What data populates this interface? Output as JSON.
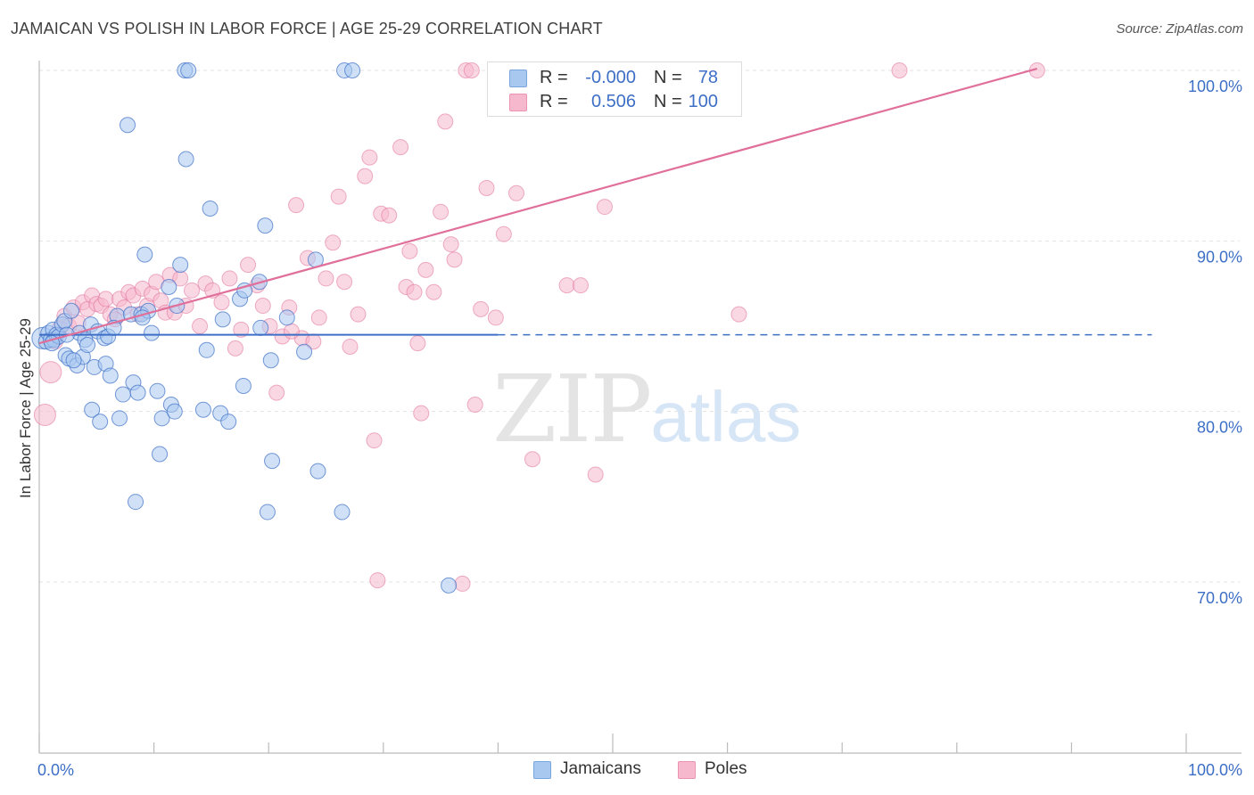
{
  "title": "JAMAICAN VS POLISH IN LABOR FORCE | AGE 25-29 CORRELATION CHART",
  "source": "Source: ZipAtlas.com",
  "watermark": {
    "zip": "ZIP",
    "atlas": "atlas"
  },
  "colors": {
    "jamaicans": "#3d6fc6",
    "poles": "#e0709a",
    "jamaicans_fill": "#a9c8f0",
    "poles_fill": "#f6b8cc",
    "accent_text": "#3d6fc6"
  },
  "legend": {
    "jamaicans": {
      "r_label": "R =",
      "r_value": "-0.000",
      "n_label": "N =",
      "n_value": "78"
    },
    "poles": {
      "r_label": "R =",
      "r_value": "0.506",
      "n_label": "N =",
      "n_value": "100"
    }
  },
  "bottom_legend": {
    "jamaicans": "Jamaicans",
    "poles": "Poles"
  },
  "chart_data": {
    "type": "scatter",
    "title": "JAMAICAN VS POLISH IN LABOR FORCE | AGE 25-29 CORRELATION CHART",
    "xlabel": "",
    "ylabel": "In Labor Force | Age 25-29",
    "xlim": [
      0,
      100
    ],
    "ylim": [
      60.5,
      101.5
    ],
    "x_tick_labels": [
      "0.0%",
      "100.0%"
    ],
    "y_ticks": [
      70,
      80,
      90,
      100
    ],
    "y_tick_labels": [
      "70.0%",
      "80.0%",
      "90.0%",
      "100.0%"
    ],
    "grid": true,
    "legend_position": "top-center",
    "series": [
      {
        "name": "Jamaicans",
        "trend": {
          "x": [
            0,
            40
          ],
          "y": [
            84.5,
            84.5
          ],
          "dashed_to_x": 97
        },
        "points": [
          [
            0.3,
            84.3
          ],
          [
            0.6,
            84.1
          ],
          [
            0.8,
            84.6
          ],
          [
            1.0,
            84.2
          ],
          [
            1.2,
            84.8
          ],
          [
            1.3,
            84.2
          ],
          [
            1.5,
            84.5
          ],
          [
            1.7,
            84.4
          ],
          [
            2.0,
            85.1
          ],
          [
            2.2,
            85.3
          ],
          [
            2.3,
            83.3
          ],
          [
            2.6,
            83.1
          ],
          [
            2.8,
            85.9
          ],
          [
            3.3,
            82.7
          ],
          [
            3.5,
            84.6
          ],
          [
            3.8,
            83.2
          ],
          [
            4.0,
            84.2
          ],
          [
            4.2,
            83.9
          ],
          [
            4.5,
            85.1
          ],
          [
            4.6,
            80.1
          ],
          [
            4.8,
            82.6
          ],
          [
            5.1,
            84.7
          ],
          [
            5.3,
            79.4
          ],
          [
            5.7,
            84.3
          ],
          [
            5.8,
            82.8
          ],
          [
            6.0,
            84.4
          ],
          [
            6.2,
            82.1
          ],
          [
            6.8,
            85.6
          ],
          [
            7.0,
            79.6
          ],
          [
            7.3,
            81.0
          ],
          [
            7.7,
            96.8
          ],
          [
            8.0,
            85.7
          ],
          [
            8.2,
            81.7
          ],
          [
            8.4,
            74.7
          ],
          [
            8.6,
            81.1
          ],
          [
            8.9,
            85.7
          ],
          [
            9.2,
            89.2
          ],
          [
            9.5,
            85.9
          ],
          [
            9.8,
            84.6
          ],
          [
            10.3,
            81.2
          ],
          [
            10.5,
            77.5
          ],
          [
            10.7,
            79.6
          ],
          [
            11.3,
            87.3
          ],
          [
            11.5,
            80.4
          ],
          [
            11.8,
            80.0
          ],
          [
            12.0,
            86.2
          ],
          [
            12.3,
            88.6
          ],
          [
            12.7,
            100.0
          ],
          [
            13.0,
            100.0
          ],
          [
            12.8,
            94.8
          ],
          [
            14.3,
            80.1
          ],
          [
            14.6,
            83.6
          ],
          [
            14.9,
            91.9
          ],
          [
            15.8,
            79.9
          ],
          [
            16.5,
            79.4
          ],
          [
            17.5,
            86.6
          ],
          [
            17.8,
            81.5
          ],
          [
            17.9,
            87.1
          ],
          [
            19.2,
            87.6
          ],
          [
            19.3,
            84.9
          ],
          [
            19.7,
            90.9
          ],
          [
            19.9,
            74.1
          ],
          [
            20.2,
            83.0
          ],
          [
            20.3,
            77.1
          ],
          [
            21.6,
            85.5
          ],
          [
            23.1,
            83.5
          ],
          [
            24.1,
            88.9
          ],
          [
            24.3,
            76.5
          ],
          [
            26.4,
            74.1
          ],
          [
            26.6,
            100.0
          ],
          [
            27.3,
            100.0
          ],
          [
            35.7,
            69.8
          ],
          [
            1.1,
            84.0
          ],
          [
            2.4,
            84.5
          ],
          [
            3.0,
            83.0
          ],
          [
            6.5,
            84.9
          ],
          [
            9.0,
            85.5
          ],
          [
            16.0,
            85.4
          ]
        ]
      },
      {
        "name": "Poles",
        "trend": {
          "x": [
            0,
            87
          ],
          "y": [
            84.0,
            100.1
          ]
        },
        "points": [
          [
            0.5,
            79.8
          ],
          [
            1.0,
            82.3
          ],
          [
            1.4,
            84.1
          ],
          [
            1.8,
            84.9
          ],
          [
            2.2,
            85.6
          ],
          [
            2.6,
            85.0
          ],
          [
            3.0,
            86.1
          ],
          [
            3.4,
            85.2
          ],
          [
            3.8,
            86.4
          ],
          [
            4.2,
            86.0
          ],
          [
            4.6,
            86.8
          ],
          [
            5.0,
            86.3
          ],
          [
            5.4,
            86.2
          ],
          [
            5.8,
            86.6
          ],
          [
            6.2,
            85.7
          ],
          [
            6.6,
            85.4
          ],
          [
            7.0,
            86.6
          ],
          [
            7.4,
            86.1
          ],
          [
            7.8,
            87.0
          ],
          [
            8.2,
            86.8
          ],
          [
            8.6,
            85.7
          ],
          [
            9.0,
            87.2
          ],
          [
            9.4,
            86.2
          ],
          [
            9.8,
            86.9
          ],
          [
            10.2,
            87.6
          ],
          [
            10.6,
            86.5
          ],
          [
            11.0,
            85.8
          ],
          [
            11.4,
            88.0
          ],
          [
            11.8,
            85.8
          ],
          [
            12.3,
            87.8
          ],
          [
            12.8,
            86.2
          ],
          [
            13.3,
            87.1
          ],
          [
            14.0,
            85.0
          ],
          [
            14.5,
            87.5
          ],
          [
            15.1,
            87.1
          ],
          [
            15.9,
            86.4
          ],
          [
            16.6,
            87.8
          ],
          [
            17.1,
            83.7
          ],
          [
            17.6,
            84.8
          ],
          [
            18.2,
            88.6
          ],
          [
            19.0,
            87.4
          ],
          [
            19.5,
            86.2
          ],
          [
            20.1,
            85.0
          ],
          [
            20.7,
            81.1
          ],
          [
            21.2,
            84.4
          ],
          [
            21.8,
            86.1
          ],
          [
            22.4,
            92.1
          ],
          [
            22.9,
            84.3
          ],
          [
            23.4,
            89.0
          ],
          [
            23.9,
            84.1
          ],
          [
            24.4,
            85.5
          ],
          [
            25.0,
            87.8
          ],
          [
            25.6,
            89.9
          ],
          [
            26.1,
            92.6
          ],
          [
            26.6,
            87.6
          ],
          [
            27.1,
            83.8
          ],
          [
            27.8,
            85.7
          ],
          [
            28.4,
            93.8
          ],
          [
            28.8,
            94.9
          ],
          [
            29.2,
            78.3
          ],
          [
            29.5,
            70.1
          ],
          [
            29.8,
            91.6
          ],
          [
            30.5,
            91.5
          ],
          [
            31.5,
            95.5
          ],
          [
            32.0,
            87.3
          ],
          [
            32.3,
            89.4
          ],
          [
            32.7,
            87.0
          ],
          [
            33.3,
            79.9
          ],
          [
            33.7,
            88.3
          ],
          [
            34.4,
            87.0
          ],
          [
            35.0,
            91.7
          ],
          [
            35.4,
            97.0
          ],
          [
            35.9,
            89.8
          ],
          [
            36.2,
            88.9
          ],
          [
            36.9,
            69.9
          ],
          [
            37.2,
            100.0
          ],
          [
            37.7,
            100.0
          ],
          [
            38.0,
            80.4
          ],
          [
            38.5,
            86.0
          ],
          [
            39.0,
            93.1
          ],
          [
            39.8,
            85.5
          ],
          [
            40.5,
            90.4
          ],
          [
            41.6,
            92.8
          ],
          [
            42.5,
            100.0
          ],
          [
            43.0,
            77.2
          ],
          [
            44.0,
            100.0
          ],
          [
            45.2,
            100.0
          ],
          [
            46.0,
            87.4
          ],
          [
            47.2,
            87.4
          ],
          [
            48.5,
            76.3
          ],
          [
            49.3,
            92.0
          ],
          [
            50.0,
            100.0
          ],
          [
            52.0,
            100.0
          ],
          [
            55.0,
            100.0
          ],
          [
            57.0,
            100.0
          ],
          [
            61.0,
            85.7
          ],
          [
            75.0,
            100.0
          ],
          [
            87.0,
            100.0
          ],
          [
            33.0,
            84.0
          ],
          [
            22.0,
            84.7
          ]
        ]
      }
    ]
  }
}
